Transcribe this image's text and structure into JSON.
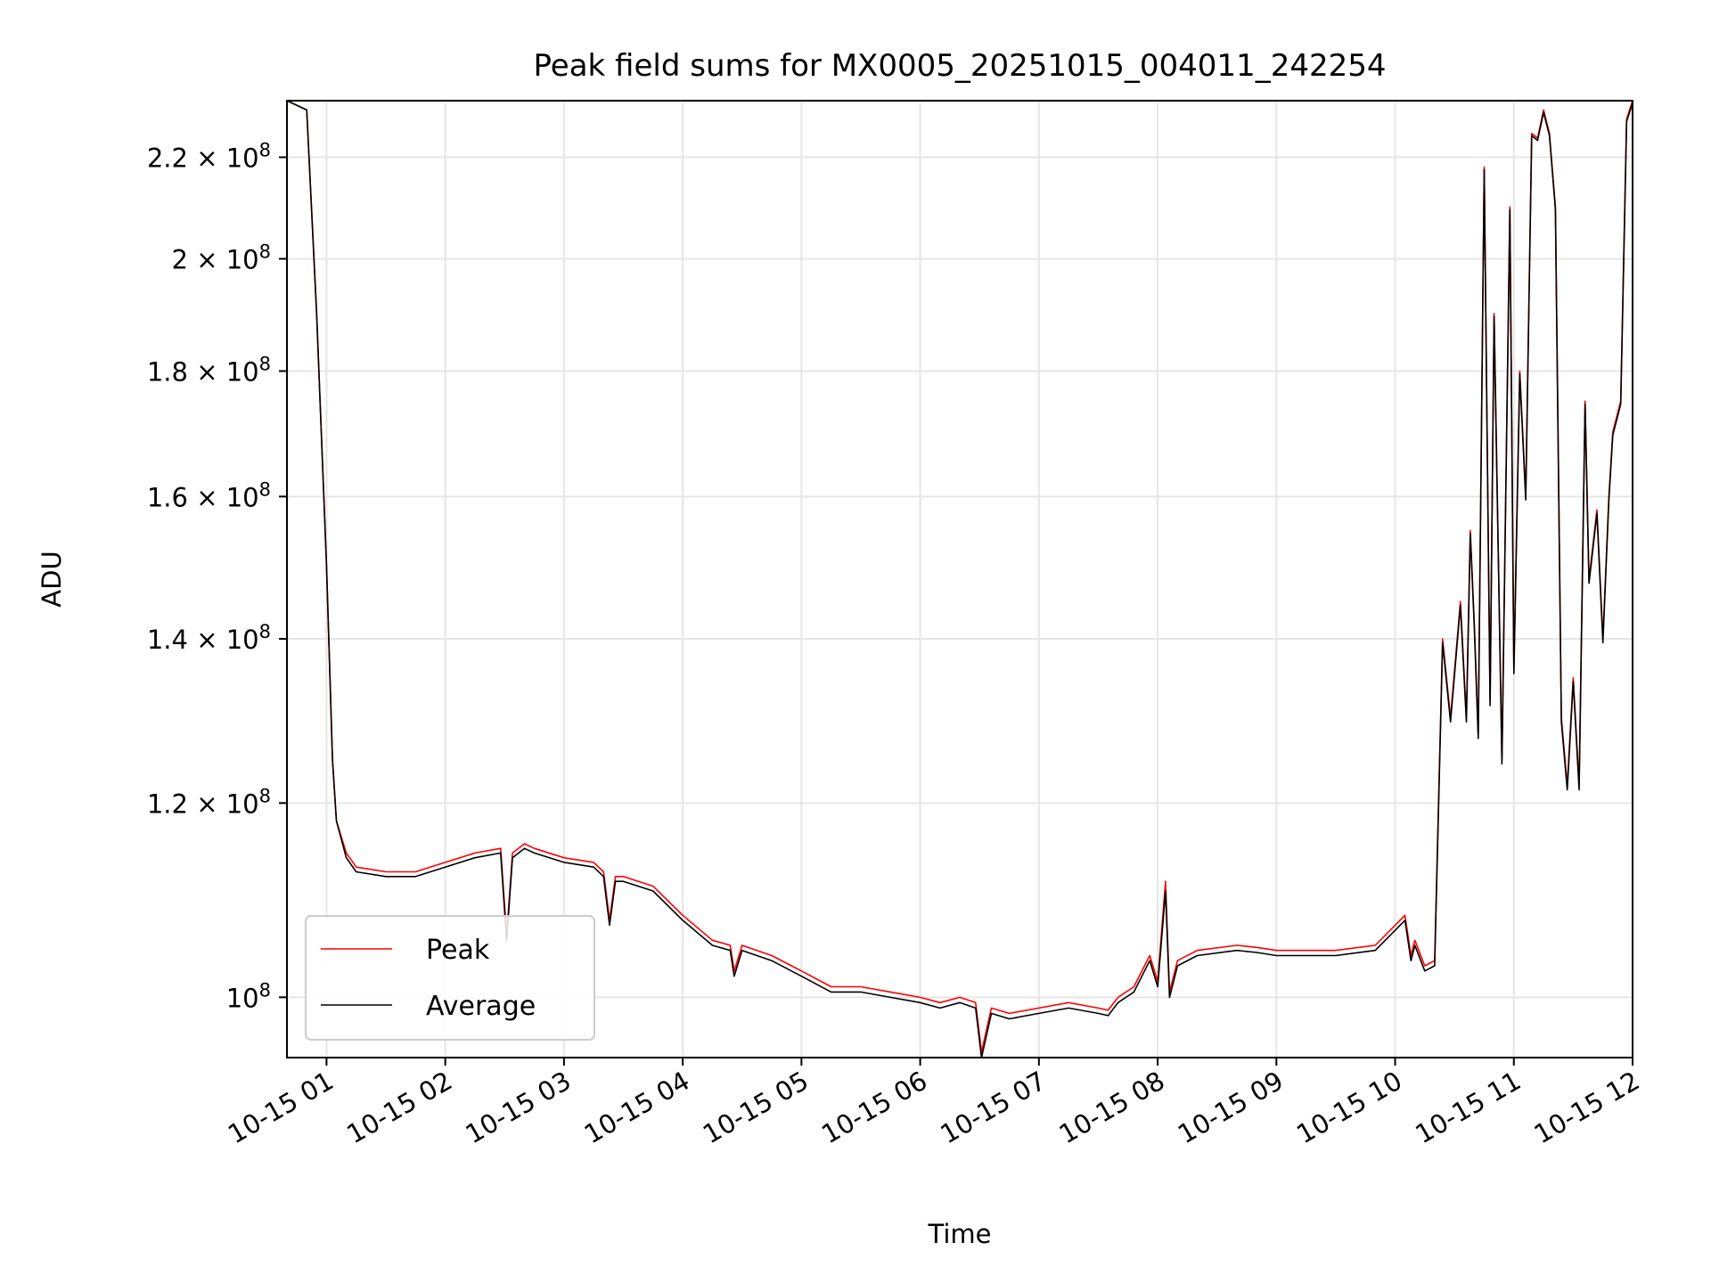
{
  "chart_data": {
    "type": "line",
    "title": "Peak field sums for MX0005_20251015_004011_242254",
    "xlabel": "Time",
    "ylabel": "ADU",
    "y_scale": "log",
    "grid": true,
    "legend_position": "lower-left",
    "xlim": [
      "2025-10-15 00:40",
      "2025-10-15 12:00"
    ],
    "ylim": [
      94500000,
      232000000
    ],
    "x_ticks": [
      {
        "value": "2025-10-15 01:00",
        "label": "10-15 01"
      },
      {
        "value": "2025-10-15 02:00",
        "label": "10-15 02"
      },
      {
        "value": "2025-10-15 03:00",
        "label": "10-15 03"
      },
      {
        "value": "2025-10-15 04:00",
        "label": "10-15 04"
      },
      {
        "value": "2025-10-15 05:00",
        "label": "10-15 05"
      },
      {
        "value": "2025-10-15 06:00",
        "label": "10-15 06"
      },
      {
        "value": "2025-10-15 07:00",
        "label": "10-15 07"
      },
      {
        "value": "2025-10-15 08:00",
        "label": "10-15 08"
      },
      {
        "value": "2025-10-15 09:00",
        "label": "10-15 09"
      },
      {
        "value": "2025-10-15 10:00",
        "label": "10-15 10"
      },
      {
        "value": "2025-10-15 11:00",
        "label": "10-15 11"
      },
      {
        "value": "2025-10-15 12:00",
        "label": "10-15 12"
      }
    ],
    "y_ticks": [
      {
        "value": 100000000,
        "mantissa": "",
        "exponent": "8"
      },
      {
        "value": 120000000,
        "mantissa": "1.2",
        "exponent": "8"
      },
      {
        "value": 140000000,
        "mantissa": "1.4",
        "exponent": "8"
      },
      {
        "value": 160000000,
        "mantissa": "1.6",
        "exponent": "8"
      },
      {
        "value": 180000000,
        "mantissa": "1.8",
        "exponent": "8"
      },
      {
        "value": 200000000,
        "mantissa": "2",
        "exponent": "8"
      },
      {
        "value": 220000000,
        "mantissa": "2.2",
        "exponent": "8"
      }
    ],
    "x": [
      "2025-10-15 00:40",
      "2025-10-15 00:50",
      "2025-10-15 00:55",
      "2025-10-15 01:00",
      "2025-10-15 01:03",
      "2025-10-15 01:05",
      "2025-10-15 01:10",
      "2025-10-15 01:15",
      "2025-10-15 01:30",
      "2025-10-15 01:45",
      "2025-10-15 02:00",
      "2025-10-15 02:15",
      "2025-10-15 02:28",
      "2025-10-15 02:31",
      "2025-10-15 02:34",
      "2025-10-15 02:40",
      "2025-10-15 02:45",
      "2025-10-15 03:00",
      "2025-10-15 03:15",
      "2025-10-15 03:20",
      "2025-10-15 03:23",
      "2025-10-15 03:26",
      "2025-10-15 03:30",
      "2025-10-15 03:45",
      "2025-10-15 04:00",
      "2025-10-15 04:15",
      "2025-10-15 04:24",
      "2025-10-15 04:26",
      "2025-10-15 04:30",
      "2025-10-15 04:45",
      "2025-10-15 05:00",
      "2025-10-15 05:15",
      "2025-10-15 05:20",
      "2025-10-15 05:30",
      "2025-10-15 05:45",
      "2025-10-15 06:00",
      "2025-10-15 06:10",
      "2025-10-15 06:20",
      "2025-10-15 06:28",
      "2025-10-15 06:31",
      "2025-10-15 06:36",
      "2025-10-15 06:45",
      "2025-10-15 07:00",
      "2025-10-15 07:15",
      "2025-10-15 07:30",
      "2025-10-15 07:35",
      "2025-10-15 07:40",
      "2025-10-15 07:48",
      "2025-10-15 07:56",
      "2025-10-15 08:00",
      "2025-10-15 08:04",
      "2025-10-15 08:06",
      "2025-10-15 08:10",
      "2025-10-15 08:20",
      "2025-10-15 08:40",
      "2025-10-15 08:50",
      "2025-10-15 09:00",
      "2025-10-15 09:30",
      "2025-10-15 09:50",
      "2025-10-15 10:05",
      "2025-10-15 10:08",
      "2025-10-15 10:10",
      "2025-10-15 10:15",
      "2025-10-15 10:20",
      "2025-10-15 10:24",
      "2025-10-15 10:28",
      "2025-10-15 10:33",
      "2025-10-15 10:36",
      "2025-10-15 10:38",
      "2025-10-15 10:40",
      "2025-10-15 10:42",
      "2025-10-15 10:45",
      "2025-10-15 10:48",
      "2025-10-15 10:50",
      "2025-10-15 10:54",
      "2025-10-15 10:58",
      "2025-10-15 11:00",
      "2025-10-15 11:03",
      "2025-10-15 11:06",
      "2025-10-15 11:09",
      "2025-10-15 11:12",
      "2025-10-15 11:15",
      "2025-10-15 11:18",
      "2025-10-15 11:21",
      "2025-10-15 11:24",
      "2025-10-15 11:27",
      "2025-10-15 11:30",
      "2025-10-15 11:33",
      "2025-10-15 11:36",
      "2025-10-15 11:38",
      "2025-10-15 11:42",
      "2025-10-15 11:45",
      "2025-10-15 11:48",
      "2025-10-15 11:50",
      "2025-10-15 11:54",
      "2025-10-15 11:57",
      "2025-10-15 12:00"
    ],
    "series": [
      {
        "name": "Peak",
        "color": "#ff0000",
        "values": [
          232000000,
          230000000,
          190000000,
          150000000,
          125000000,
          118000000,
          114500000,
          113000000,
          112500000,
          112500000,
          113500000,
          114500000,
          115000000,
          106000000,
          114500000,
          115500000,
          115000000,
          114000000,
          113500000,
          112500000,
          107500000,
          112000000,
          112000000,
          111000000,
          108000000,
          105500000,
          105000000,
          102500000,
          105000000,
          104000000,
          102500000,
          101000000,
          101000000,
          101000000,
          100500000,
          100000000,
          99500000,
          100000000,
          99500000,
          95000000,
          99000000,
          98500000,
          99000000,
          99500000,
          99000000,
          98800000,
          100000000,
          101000000,
          104000000,
          101500000,
          111500000,
          100500000,
          103500000,
          104500000,
          105000000,
          104800000,
          104500000,
          104500000,
          105000000,
          108000000,
          104000000,
          105500000,
          103000000,
          103500000,
          140000000,
          130000000,
          145000000,
          130000000,
          155000000,
          142000000,
          128000000,
          218000000,
          132000000,
          190000000,
          125000000,
          210000000,
          136000000,
          180000000,
          160000000,
          225000000,
          224000000,
          230000000,
          225000000,
          210000000,
          130000000,
          122000000,
          135000000,
          122000000,
          175000000,
          148000000,
          158000000,
          140000000,
          160000000,
          170000000,
          175000000,
          228000000,
          232000000
        ]
      },
      {
        "name": "Average",
        "color": "#000000",
        "values": [
          232000000,
          230000000,
          190000000,
          150000000,
          125000000,
          118000000,
          114000000,
          112500000,
          112000000,
          112000000,
          113000000,
          114000000,
          114500000,
          105500000,
          114000000,
          115000000,
          114500000,
          113500000,
          113000000,
          112000000,
          107000000,
          111500000,
          111500000,
          110500000,
          107500000,
          105000000,
          104500000,
          102000000,
          104500000,
          103500000,
          102000000,
          100500000,
          100500000,
          100500000,
          100000000,
          99500000,
          99000000,
          99500000,
          99000000,
          94500000,
          98500000,
          98000000,
          98500000,
          99000000,
          98500000,
          98300000,
          99500000,
          100500000,
          103500000,
          101000000,
          110500000,
          100000000,
          103000000,
          104000000,
          104500000,
          104300000,
          104000000,
          104000000,
          104500000,
          107500000,
          103500000,
          105000000,
          102500000,
          103000000,
          139500000,
          129500000,
          144500000,
          129500000,
          154500000,
          141500000,
          127500000,
          217500000,
          131500000,
          189500000,
          124500000,
          209500000,
          135500000,
          179500000,
          159500000,
          224500000,
          223500000,
          229500000,
          224500000,
          209500000,
          129500000,
          121500000,
          134500000,
          121500000,
          174500000,
          147500000,
          157500000,
          139500000,
          159500000,
          169500000,
          174500000,
          227500000,
          231500000
        ]
      }
    ]
  }
}
